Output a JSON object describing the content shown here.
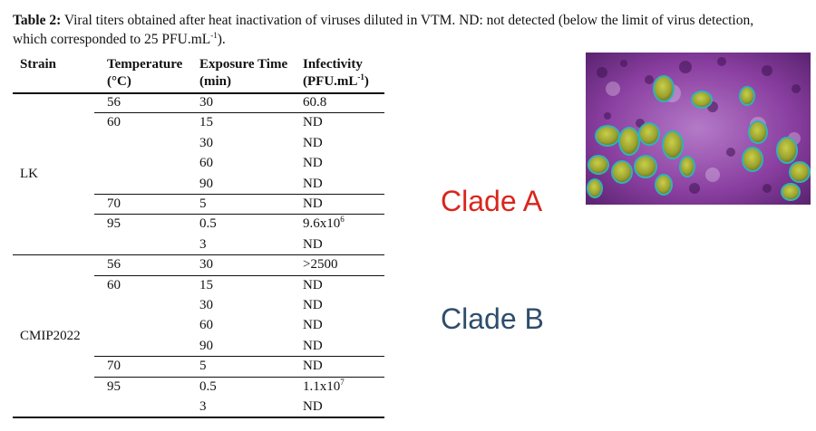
{
  "caption": {
    "label": "Table 2:",
    "text_before_sup": " Viral titers obtained after heat inactivation of viruses diluted in VTM. ND: not detected (below the limit of virus detection, which corresponded to 25 PFU.mL",
    "sup": "-1",
    "text_after_sup": ")."
  },
  "table": {
    "headers": {
      "strain": "Strain",
      "temperature": "Temperature",
      "temperature_unit": "(°C)",
      "exposure": "Exposure Time",
      "exposure_unit": "(min)",
      "infectivity": "Infectivity",
      "infectivity_unit_base": "(PFU.mL",
      "infectivity_unit_sup": "-1",
      "infectivity_unit_end": ")"
    },
    "groups": [
      {
        "strain": "LK",
        "rows": [
          {
            "temp": "56",
            "time": "30",
            "inf": "60.8",
            "inf_sup": ""
          },
          {
            "temp": "60",
            "time": "15",
            "inf": "ND",
            "inf_sup": ""
          },
          {
            "temp": "",
            "time": "30",
            "inf": "ND",
            "inf_sup": ""
          },
          {
            "temp": "",
            "time": "60",
            "inf": "ND",
            "inf_sup": ""
          },
          {
            "temp": "",
            "time": "90",
            "inf": "ND",
            "inf_sup": ""
          },
          {
            "temp": "70",
            "time": "5",
            "inf": "ND",
            "inf_sup": ""
          },
          {
            "temp": "95",
            "time": "0.5",
            "inf": "9.6x10",
            "inf_sup": "6"
          },
          {
            "temp": "",
            "time": "3",
            "inf": "ND",
            "inf_sup": ""
          }
        ]
      },
      {
        "strain": "CMIP2022",
        "rows": [
          {
            "temp": "56",
            "time": "30",
            "inf": ">2500",
            "inf_sup": ""
          },
          {
            "temp": "60",
            "time": "15",
            "inf": "ND",
            "inf_sup": ""
          },
          {
            "temp": "",
            "time": "30",
            "inf": "ND",
            "inf_sup": ""
          },
          {
            "temp": "",
            "time": "60",
            "inf": "ND",
            "inf_sup": ""
          },
          {
            "temp": "",
            "time": "90",
            "inf": "ND",
            "inf_sup": ""
          },
          {
            "temp": "70",
            "time": "5",
            "inf": "ND",
            "inf_sup": ""
          },
          {
            "temp": "95",
            "time": "0.5",
            "inf": "1.1x10",
            "inf_sup": "7"
          },
          {
            "temp": "",
            "time": "3",
            "inf": "ND",
            "inf_sup": ""
          }
        ]
      }
    ]
  },
  "annotations": {
    "clade_a": "Clade A",
    "clade_b": "Clade B",
    "clade_a_color": "#d9261c",
    "clade_b_color": "#2e4d6b"
  },
  "image": {
    "subject": "micrograph-virus-particles",
    "background_color": "#8a3fa0",
    "particle_color": "#9aa12e",
    "outline_color": "#2fb4b8"
  }
}
